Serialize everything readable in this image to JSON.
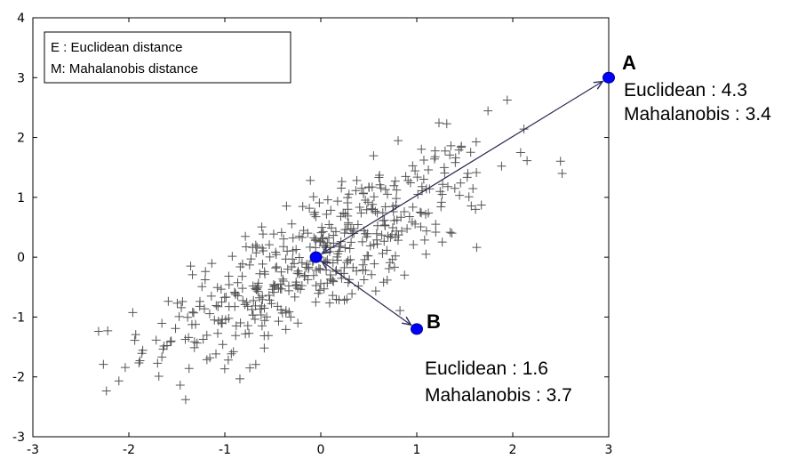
{
  "chart_data": {
    "type": "scatter",
    "title": "",
    "xlabel": "",
    "ylabel": "",
    "xlim": [
      -3,
      3
    ],
    "ylim": [
      -3,
      4
    ],
    "xticks": [
      -3,
      -2,
      -1,
      0,
      1,
      2,
      3
    ],
    "yticks": [
      -3,
      -2,
      -1,
      0,
      1,
      2,
      3,
      4
    ],
    "grid": false,
    "scatter_series": {
      "name": "samples",
      "marker": "+",
      "color": "#555555",
      "count": 500,
      "distribution": "bivariate normal, mean [0, 0], sd_x 0.9, sd_y 0.9, correlation 0.8 (approximate)"
    },
    "points": [
      {
        "name": "origin",
        "x": -0.05,
        "y": 0.0,
        "label": "",
        "color": "#0000ff"
      },
      {
        "name": "A",
        "x": 3.0,
        "y": 3.0,
        "label": "A",
        "euclidean": "Euclidean : 4.3",
        "mahalanobis": "Mahalanobis : 3.4",
        "color": "#0000ff"
      },
      {
        "name": "B",
        "x": 1.0,
        "y": -1.2,
        "label": "B",
        "euclidean": "Euclidean : 1.6",
        "mahalanobis": "Mahalanobis : 3.7",
        "color": "#0000ff"
      }
    ],
    "arrows": [
      {
        "from": "origin",
        "to": "A",
        "double_headed": true
      },
      {
        "from": "origin",
        "to": "B",
        "double_headed": true
      }
    ],
    "legend": {
      "position": "top-left",
      "entries": [
        "E : Euclidean distance",
        "M: Mahalanobis distance"
      ]
    }
  }
}
